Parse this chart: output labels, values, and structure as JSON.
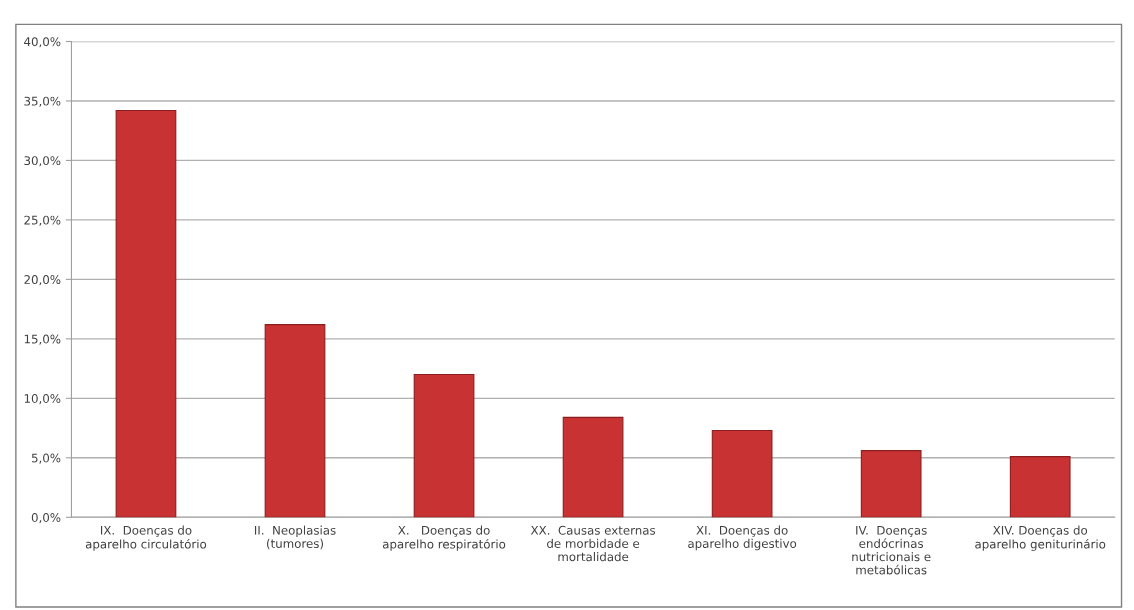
{
  "chart_data": {
    "type": "bar",
    "categories": [
      "IX.  Doenças do\naparelho circulatório",
      "II.  Neoplasias\n(tumores)",
      "X.   Doenças do\naparelho respiratório",
      "XX.  Causas externas\nde morbidade e\nmortalidade",
      "XI.  Doenças do\naparelho digestivo",
      "IV.  Doenças\nendócrinas\nnutricionais e\nmetabólicas",
      "XIV. Doenças do\naparelho geniturinário"
    ],
    "values": [
      34.2,
      16.2,
      12.0,
      8.4,
      7.3,
      5.6,
      5.1
    ],
    "color": "#c83232",
    "ylim": [
      0,
      40
    ],
    "yticks": [
      {
        "value": 0,
        "label": "0,0%"
      },
      {
        "value": 5,
        "label": "5,0%"
      },
      {
        "value": 10,
        "label": "10,0%"
      },
      {
        "value": 15,
        "label": "15,0%"
      },
      {
        "value": 20,
        "label": "20,0%"
      },
      {
        "value": 25,
        "label": "25,0%"
      },
      {
        "value": 30,
        "label": "30,0%"
      },
      {
        "value": 35,
        "label": "35,0%"
      },
      {
        "value": 40,
        "label": "40,0%"
      }
    ],
    "grid": "y",
    "legend": false
  }
}
